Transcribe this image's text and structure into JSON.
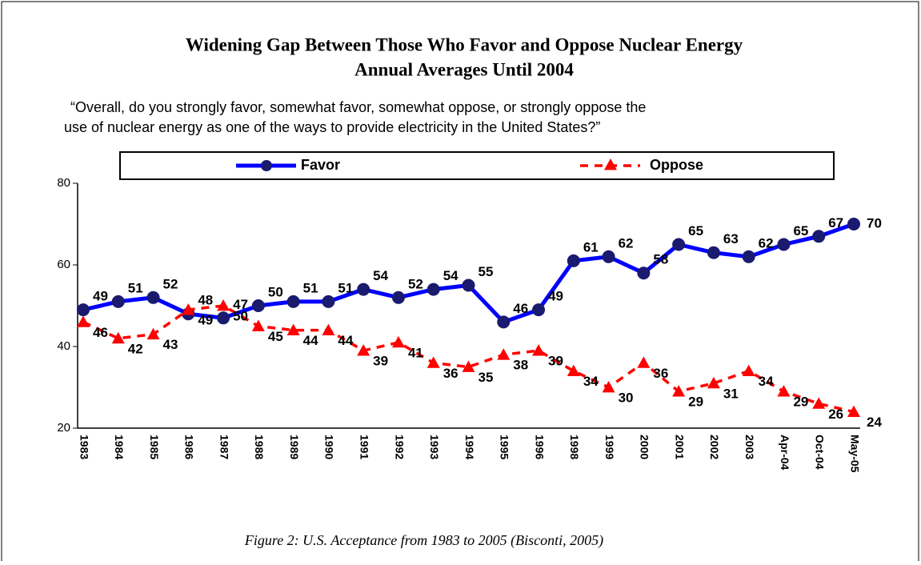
{
  "chart_data": {
    "type": "line",
    "title": "Widening Gap Between Those Who Favor and Oppose Nuclear Energy",
    "subtitle": "Annual Averages Until 2004",
    "question": [
      "“Overall, do you strongly favor, somewhat favor, somewhat oppose, or strongly oppose the",
      "use of nuclear energy as one of the ways to provide electricity in the United States?”"
    ],
    "caption": "Figure 2: U.S. Acceptance from 1983 to 2005 (Bisconti, 2005)",
    "categories": [
      "1983",
      "1984",
      "1985",
      "1986",
      "1987",
      "1988",
      "1989",
      "1990",
      "1991",
      "1992",
      "1993",
      "1994",
      "1995",
      "1996",
      "1998",
      "1999",
      "2000",
      "2001",
      "2002",
      "2003",
      "Apr-04",
      "Oct-04",
      "May-05"
    ],
    "series": [
      {
        "name": "Favor",
        "color": "#0000ff",
        "marker_color": "#1a1a6e",
        "values": [
          49,
          51,
          52,
          48,
          47,
          50,
          51,
          51,
          54,
          52,
          54,
          55,
          46,
          49,
          61,
          62,
          58,
          65,
          63,
          62,
          65,
          67,
          70
        ]
      },
      {
        "name": "Oppose",
        "color": "#ff0000",
        "marker_color": "#ff0000",
        "values": [
          46,
          42,
          43,
          49,
          50,
          45,
          44,
          44,
          39,
          41,
          36,
          35,
          38,
          39,
          34,
          30,
          36,
          29,
          31,
          34,
          29,
          26,
          24
        ]
      }
    ],
    "ylim": [
      20,
      80
    ],
    "yticks": [
      20,
      40,
      60,
      80
    ]
  }
}
